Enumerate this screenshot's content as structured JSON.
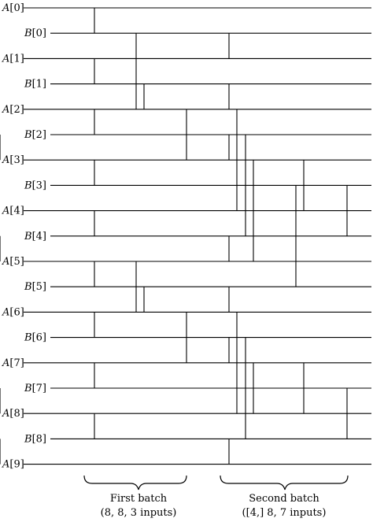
{
  "wires": [
    {
      "name": "A",
      "index": "[0]"
    },
    {
      "name": "B",
      "index": "[0]"
    },
    {
      "name": "A",
      "index": "[1]"
    },
    {
      "name": "B",
      "index": "[1]"
    },
    {
      "name": "A",
      "index": "[2]"
    },
    {
      "name": "B",
      "index": "[2]"
    },
    {
      "name": "A",
      "index": "[3]"
    },
    {
      "name": "B",
      "index": "[3]"
    },
    {
      "name": "A",
      "index": "[4]"
    },
    {
      "name": "B",
      "index": "[4]"
    },
    {
      "name": "A",
      "index": "[5]"
    },
    {
      "name": "B",
      "index": "[5]"
    },
    {
      "name": "A",
      "index": "[6]"
    },
    {
      "name": "B",
      "index": "[6]"
    },
    {
      "name": "A",
      "index": "[7]"
    },
    {
      "name": "B",
      "index": "[7]"
    },
    {
      "name": "A",
      "index": "[8]"
    },
    {
      "name": "B",
      "index": "[8]"
    },
    {
      "name": "A",
      "index": "[9]"
    }
  ],
  "batches": [
    {
      "line1": "First batch",
      "line2": "(8, 8, 3 inputs)"
    },
    {
      "line1": "Second batch",
      "line2": "([4,] 8, 7 inputs)"
    }
  ],
  "comparators": [
    {
      "col": 0,
      "from": 0,
      "to": 1
    },
    {
      "col": 0,
      "from": 2,
      "to": 3
    },
    {
      "col": 0,
      "from": 4,
      "to": 5
    },
    {
      "col": 0,
      "from": 6,
      "to": 7
    },
    {
      "col": 0,
      "from": 8,
      "to": 9
    },
    {
      "col": 0,
      "from": 10,
      "to": 11
    },
    {
      "col": 0,
      "from": 12,
      "to": 13
    },
    {
      "col": 0,
      "from": 14,
      "to": 15
    },
    {
      "col": 0,
      "from": 16,
      "to": 17
    },
    {
      "col": 1,
      "from": 1,
      "to": 4
    },
    {
      "col": 1,
      "from": 10,
      "to": 12
    },
    {
      "col": 2,
      "from": 3,
      "to": 4
    },
    {
      "col": 2,
      "from": 11,
      "to": 12
    },
    {
      "col": 3,
      "from": 4,
      "to": 6
    },
    {
      "col": 3,
      "from": 12,
      "to": 14
    },
    {
      "col": 4,
      "from": 1,
      "to": 2
    },
    {
      "col": 4,
      "from": 3,
      "to": 4
    },
    {
      "col": 4,
      "from": 5,
      "to": 6
    },
    {
      "col": 4,
      "from": 9,
      "to": 10
    },
    {
      "col": 4,
      "from": 11,
      "to": 12
    },
    {
      "col": 4,
      "from": 13,
      "to": 14
    },
    {
      "col": 4,
      "from": 17,
      "to": 18
    },
    {
      "col": 5,
      "from": 4,
      "to": 8
    },
    {
      "col": 5,
      "from": 12,
      "to": 16
    },
    {
      "col": 6,
      "from": 5,
      "to": 9
    },
    {
      "col": 6,
      "from": 13,
      "to": 17
    },
    {
      "col": 7,
      "from": 6,
      "to": 10
    },
    {
      "col": 7,
      "from": 14,
      "to": 16
    },
    {
      "col": 8,
      "from": 7,
      "to": 11
    },
    {
      "col": 9,
      "from": 6,
      "to": 8
    },
    {
      "col": 9,
      "from": 14,
      "to": 16
    },
    {
      "col": 10,
      "from": 7,
      "to": 9
    },
    {
      "col": 10,
      "from": 15,
      "to": 17
    },
    {
      "col": 11,
      "from": 5,
      "to": 6
    },
    {
      "col": 11,
      "from": 9,
      "to": 10
    },
    {
      "col": 11,
      "from": 15,
      "to": 16
    },
    {
      "col": 11,
      "from": 17,
      "to": 18
    }
  ]
}
